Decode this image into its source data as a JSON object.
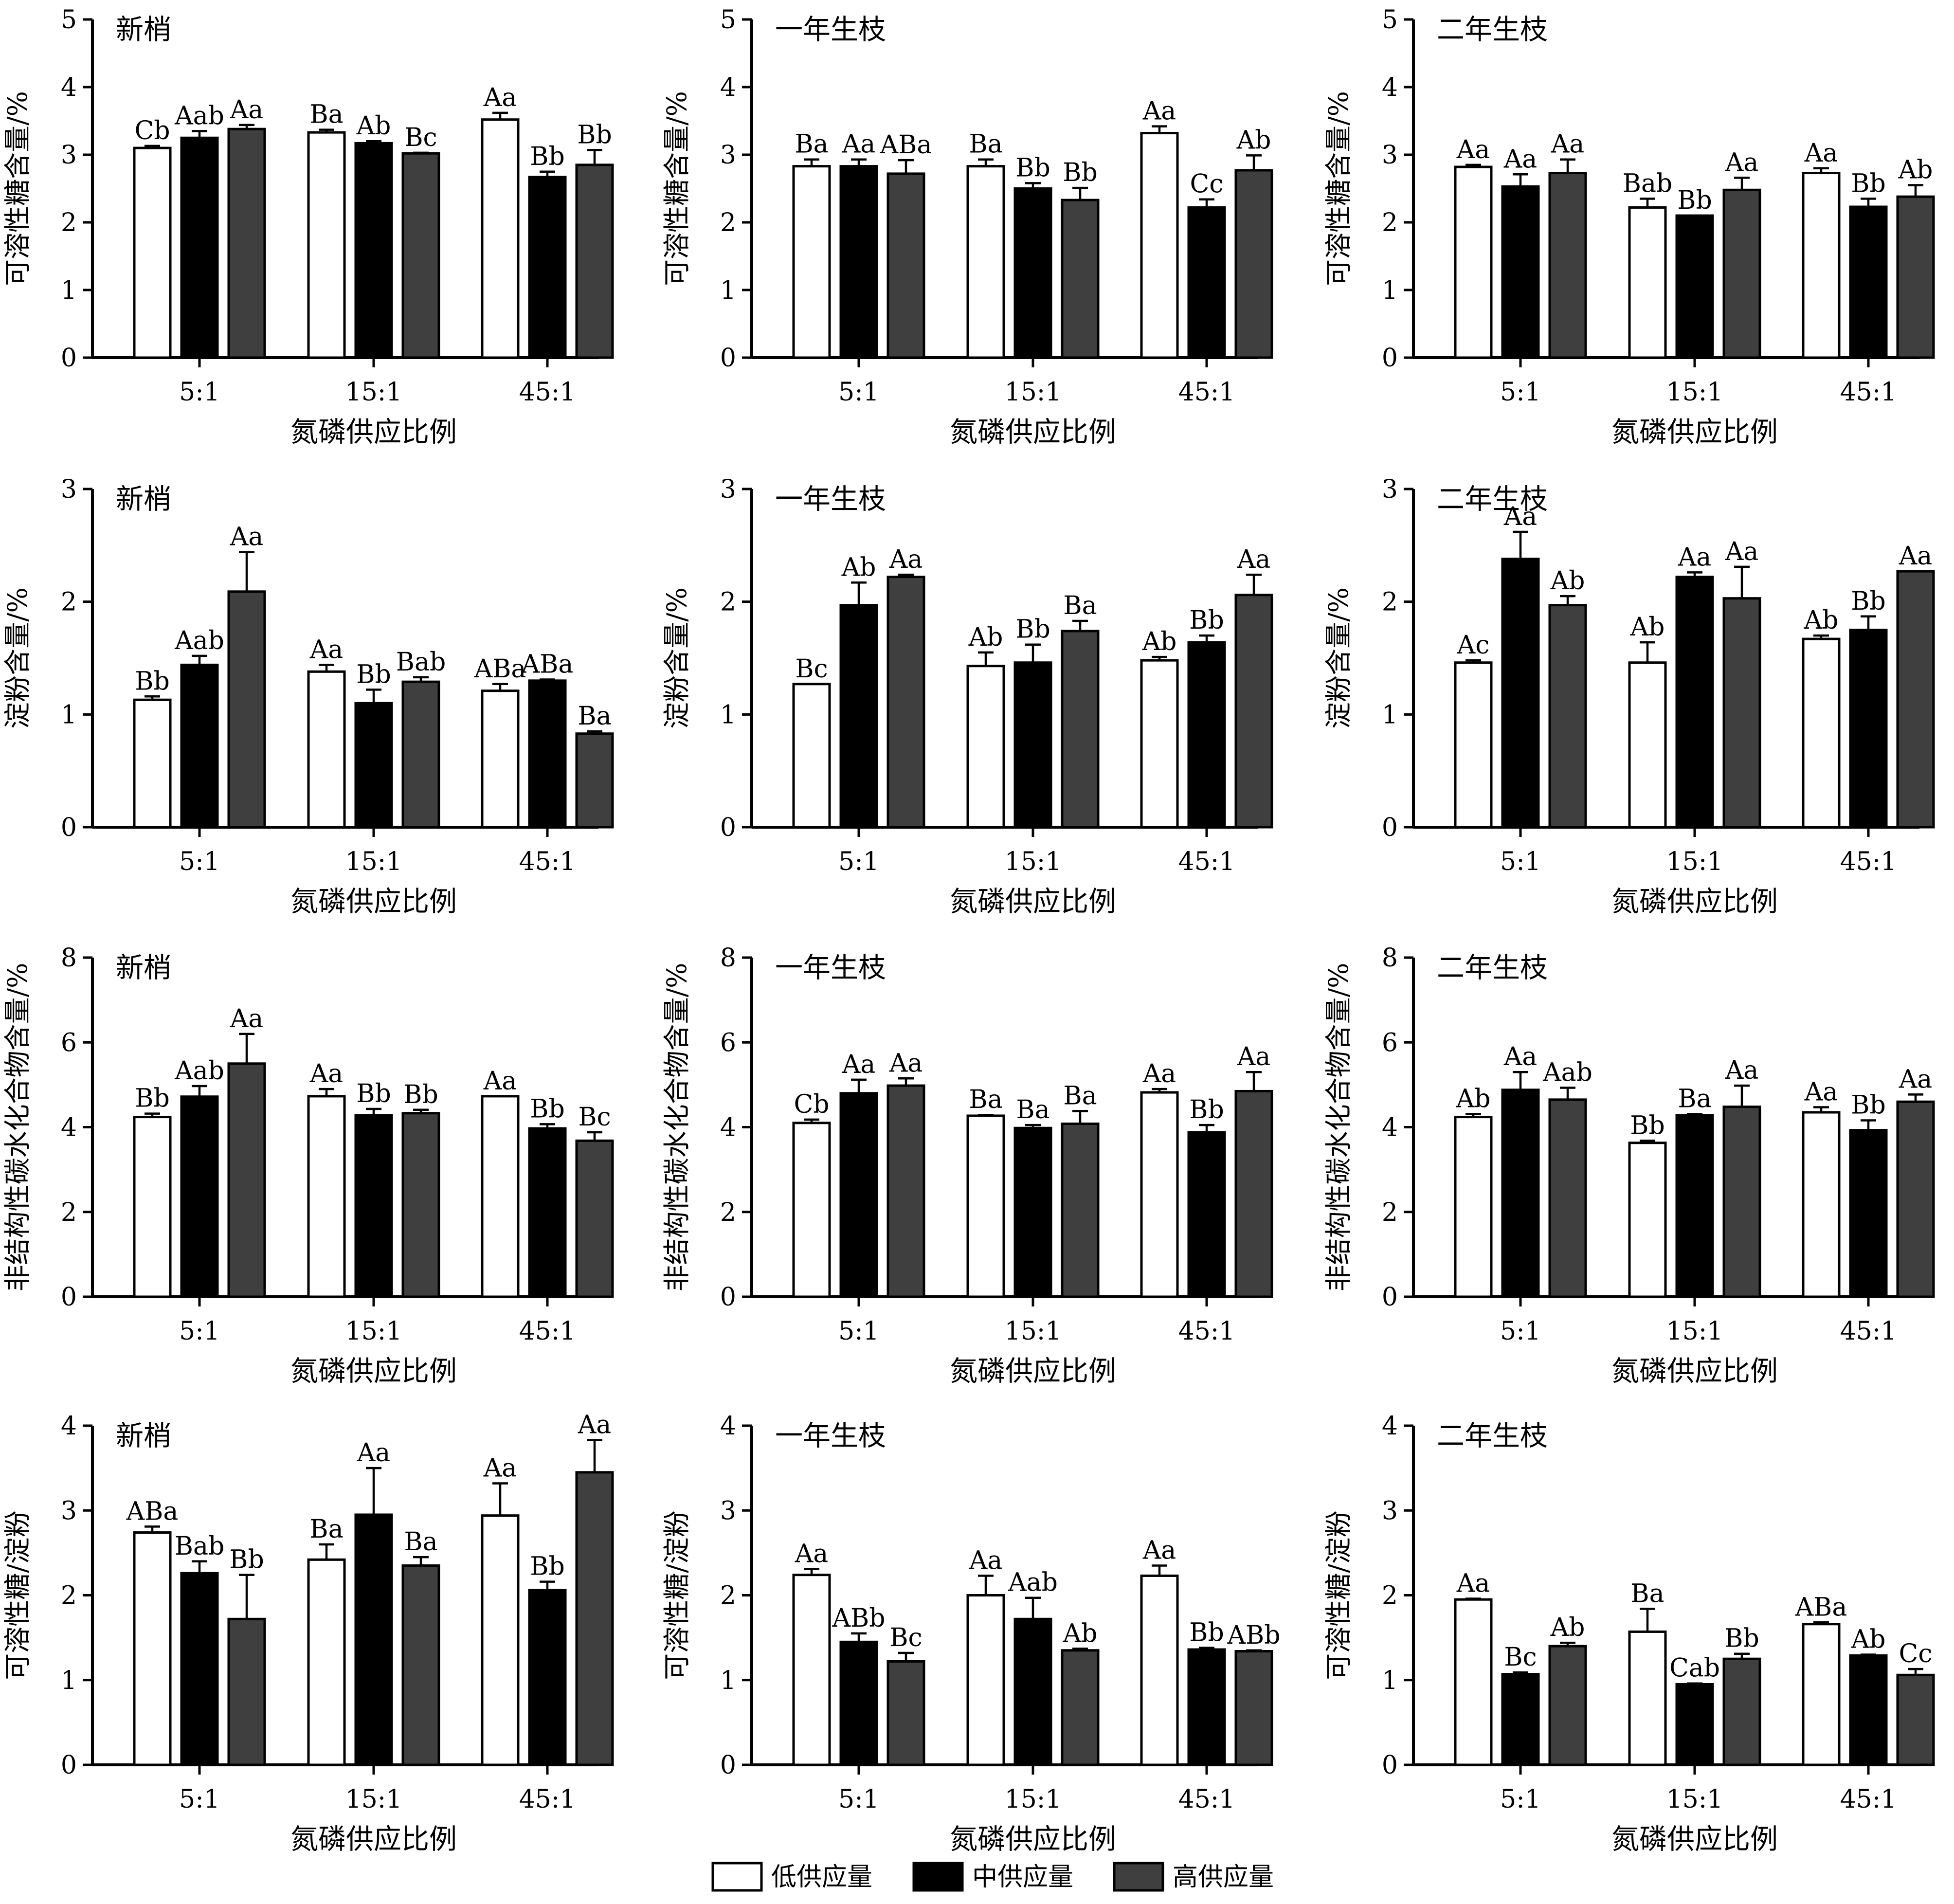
{
  "legend": [
    {
      "label": "低供应量",
      "color": "#ffffff"
    },
    {
      "label": "中供应量",
      "color": "#000000"
    },
    {
      "label": "高供应量",
      "color": "#3f3f3f"
    }
  ],
  "chart_data": [
    {
      "type": "bar",
      "title": "新梢",
      "xlabel": "氮磷供应比例",
      "ylabel": "可溶性糖含量/%",
      "ylim": [
        0,
        5
      ],
      "yticks": [
        0,
        1,
        2,
        3,
        4,
        5
      ],
      "categories": [
        "5:1",
        "15:1",
        "45:1"
      ],
      "series": [
        {
          "name": "低供应量",
          "values": [
            3.1,
            3.33,
            3.52
          ],
          "errors": [
            0.03,
            0.04,
            0.1
          ],
          "labels": [
            "Cb",
            "Ba",
            "Aa"
          ]
        },
        {
          "name": "中供应量",
          "values": [
            3.25,
            3.17,
            2.67
          ],
          "errors": [
            0.1,
            0.03,
            0.08
          ],
          "labels": [
            "Aab",
            "Ab",
            "Bb"
          ]
        },
        {
          "name": "高供应量",
          "values": [
            3.38,
            3.02,
            2.85
          ],
          "errors": [
            0.06,
            0.01,
            0.22
          ],
          "labels": [
            "Aa",
            "Bc",
            "Bb"
          ]
        }
      ]
    },
    {
      "type": "bar",
      "title": "一年生枝",
      "xlabel": "氮磷供应比例",
      "ylabel": "可溶性糖含量/%",
      "ylim": [
        0,
        5
      ],
      "yticks": [
        0,
        1,
        2,
        3,
        4,
        5
      ],
      "categories": [
        "5:1",
        "15:1",
        "45:1"
      ],
      "series": [
        {
          "name": "低供应量",
          "values": [
            2.83,
            2.83,
            3.32
          ],
          "errors": [
            0.1,
            0.1,
            0.1
          ],
          "labels": [
            "Ba",
            "Ba",
            "Aa"
          ]
        },
        {
          "name": "中供应量",
          "values": [
            2.83,
            2.5,
            2.22
          ],
          "errors": [
            0.1,
            0.08,
            0.12
          ],
          "labels": [
            "Aa",
            "Bb",
            "Cc"
          ]
        },
        {
          "name": "高供应量",
          "values": [
            2.72,
            2.33,
            2.77
          ],
          "errors": [
            0.2,
            0.18,
            0.22
          ],
          "labels": [
            "ABa",
            "Bb",
            "Ab"
          ]
        }
      ]
    },
    {
      "type": "bar",
      "title": "二年生枝",
      "xlabel": "氮磷供应比例",
      "ylabel": "可溶性糖含量/%",
      "ylim": [
        0,
        5
      ],
      "yticks": [
        0,
        1,
        2,
        3,
        4,
        5
      ],
      "categories": [
        "5:1",
        "15:1",
        "45:1"
      ],
      "series": [
        {
          "name": "低供应量",
          "values": [
            2.82,
            2.22,
            2.73
          ],
          "errors": [
            0.03,
            0.13,
            0.07
          ],
          "labels": [
            "Aa",
            "Bab",
            "Aa"
          ]
        },
        {
          "name": "中供应量",
          "values": [
            2.53,
            2.1,
            2.23
          ],
          "errors": [
            0.18,
            0.0,
            0.12
          ],
          "labels": [
            "Aa",
            "Bb",
            "Bb"
          ]
        },
        {
          "name": "高供应量",
          "values": [
            2.73,
            2.48,
            2.38
          ],
          "errors": [
            0.2,
            0.18,
            0.17
          ],
          "labels": [
            "Aa",
            "Aa",
            "Ab"
          ]
        }
      ]
    },
    {
      "type": "bar",
      "title": "新梢",
      "xlabel": "氮磷供应比例",
      "ylabel": "淀粉含量/%",
      "ylim": [
        0,
        3
      ],
      "yticks": [
        0,
        1,
        2,
        3
      ],
      "categories": [
        "5:1",
        "15:1",
        "45:1"
      ],
      "series": [
        {
          "name": "低供应量",
          "values": [
            1.13,
            1.38,
            1.21
          ],
          "errors": [
            0.03,
            0.06,
            0.06
          ],
          "labels": [
            "Bb",
            "Aa",
            "ABa"
          ]
        },
        {
          "name": "中供应量",
          "values": [
            1.44,
            1.1,
            1.3
          ],
          "errors": [
            0.08,
            0.12,
            0.01
          ],
          "labels": [
            "Aab",
            "Bb",
            "ABa"
          ]
        },
        {
          "name": "高供应量",
          "values": [
            2.09,
            1.29,
            0.83
          ],
          "errors": [
            0.35,
            0.04,
            0.02
          ],
          "labels": [
            "Aa",
            "Bab",
            "Ba"
          ]
        }
      ]
    },
    {
      "type": "bar",
      "title": "一年生枝",
      "xlabel": "氮磷供应比例",
      "ylabel": "淀粉含量/%",
      "ylim": [
        0,
        3
      ],
      "yticks": [
        0,
        1,
        2,
        3
      ],
      "categories": [
        "5:1",
        "15:1",
        "45:1"
      ],
      "series": [
        {
          "name": "低供应量",
          "values": [
            1.27,
            1.43,
            1.48
          ],
          "errors": [
            0.0,
            0.12,
            0.03
          ],
          "labels": [
            "Bc",
            "Ab",
            "Ab"
          ]
        },
        {
          "name": "中供应量",
          "values": [
            1.97,
            1.46,
            1.64
          ],
          "errors": [
            0.2,
            0.16,
            0.06
          ],
          "labels": [
            "Ab",
            "Bb",
            "Bb"
          ]
        },
        {
          "name": "高供应量",
          "values": [
            2.22,
            1.74,
            2.06
          ],
          "errors": [
            0.02,
            0.09,
            0.18
          ],
          "labels": [
            "Aa",
            "Ba",
            "Aa"
          ]
        }
      ]
    },
    {
      "type": "bar",
      "title": "二年生枝",
      "xlabel": "氮磷供应比例",
      "ylabel": "淀粉含量/%",
      "ylim": [
        0,
        3
      ],
      "yticks": [
        0,
        1,
        2,
        3
      ],
      "categories": [
        "5:1",
        "15:1",
        "45:1"
      ],
      "series": [
        {
          "name": "低供应量",
          "values": [
            1.46,
            1.46,
            1.67
          ],
          "errors": [
            0.02,
            0.18,
            0.03
          ],
          "labels": [
            "Ac",
            "Ab",
            "Ab"
          ]
        },
        {
          "name": "中供应量",
          "values": [
            2.38,
            2.22,
            1.75
          ],
          "errors": [
            0.24,
            0.04,
            0.12
          ],
          "labels": [
            "Aa",
            "Aa",
            "Bb"
          ]
        },
        {
          "name": "高供应量",
          "values": [
            1.97,
            2.03,
            2.27
          ],
          "errors": [
            0.08,
            0.28,
            0.0
          ],
          "labels": [
            "Ab",
            "Aa",
            "Aa"
          ]
        }
      ]
    },
    {
      "type": "bar",
      "title": "新梢",
      "xlabel": "氮磷供应比例",
      "ylabel": "非结构性碳水化合物含量/%",
      "ylim": [
        0,
        8
      ],
      "yticks": [
        0,
        2,
        4,
        6,
        8
      ],
      "categories": [
        "5:1",
        "15:1",
        "45:1"
      ],
      "series": [
        {
          "name": "低供应量",
          "values": [
            4.24,
            4.73,
            4.73
          ],
          "errors": [
            0.08,
            0.17,
            0.0
          ],
          "labels": [
            "Bb",
            "Aa",
            "Aa"
          ]
        },
        {
          "name": "中供应量",
          "values": [
            4.72,
            4.28,
            3.97
          ],
          "errors": [
            0.25,
            0.15,
            0.1
          ],
          "labels": [
            "Aab",
            "Bb",
            "Bb"
          ]
        },
        {
          "name": "高供应量",
          "values": [
            5.5,
            4.33,
            3.68
          ],
          "errors": [
            0.7,
            0.08,
            0.2
          ],
          "labels": [
            "Aa",
            "Bb",
            "Bc"
          ]
        }
      ]
    },
    {
      "type": "bar",
      "title": "一年生枝",
      "xlabel": "氮磷供应比例",
      "ylabel": "非结构性碳水化合物含量/%",
      "ylim": [
        0,
        8
      ],
      "yticks": [
        0,
        2,
        4,
        6,
        8
      ],
      "categories": [
        "5:1",
        "15:1",
        "45:1"
      ],
      "series": [
        {
          "name": "低供应量",
          "values": [
            4.1,
            4.27,
            4.82
          ],
          "errors": [
            0.08,
            0.02,
            0.08
          ],
          "labels": [
            "Cb",
            "Ba",
            "Aa"
          ]
        },
        {
          "name": "中供应量",
          "values": [
            4.8,
            3.98,
            3.88
          ],
          "errors": [
            0.32,
            0.07,
            0.17
          ],
          "labels": [
            "Aa",
            "Ba",
            "Bb"
          ]
        },
        {
          "name": "高供应量",
          "values": [
            4.98,
            4.08,
            4.85
          ],
          "errors": [
            0.17,
            0.3,
            0.45
          ],
          "labels": [
            "Aa",
            "Ba",
            "Aa"
          ]
        }
      ]
    },
    {
      "type": "bar",
      "title": "二年生枝",
      "xlabel": "氮磷供应比例",
      "ylabel": "非结构性碳水化合物含量/%",
      "ylim": [
        0,
        8
      ],
      "yticks": [
        0,
        2,
        4,
        6,
        8
      ],
      "categories": [
        "5:1",
        "15:1",
        "45:1"
      ],
      "series": [
        {
          "name": "低供应量",
          "values": [
            4.24,
            3.63,
            4.35
          ],
          "errors": [
            0.07,
            0.05,
            0.12
          ],
          "labels": [
            "Ab",
            "Bb",
            "Aa"
          ]
        },
        {
          "name": "中供应量",
          "values": [
            4.88,
            4.28,
            3.93
          ],
          "errors": [
            0.42,
            0.03,
            0.23
          ],
          "labels": [
            "Aa",
            "Ba",
            "Bb"
          ]
        },
        {
          "name": "高供应量",
          "values": [
            4.65,
            4.48,
            4.6
          ],
          "errors": [
            0.28,
            0.5,
            0.17
          ],
          "labels": [
            "Aab",
            "Aa",
            "Aa"
          ]
        }
      ]
    },
    {
      "type": "bar",
      "title": "新梢",
      "xlabel": "氮磷供应比例",
      "ylabel": "可溶性糖/淀粉",
      "ylim": [
        0,
        4
      ],
      "yticks": [
        0,
        1,
        2,
        3,
        4
      ],
      "categories": [
        "5:1",
        "15:1",
        "45:1"
      ],
      "series": [
        {
          "name": "低供应量",
          "values": [
            2.74,
            2.42,
            2.94
          ],
          "errors": [
            0.07,
            0.18,
            0.38
          ],
          "labels": [
            "ABa",
            "Ba",
            "Aa"
          ]
        },
        {
          "name": "中供应量",
          "values": [
            2.26,
            2.95,
            2.06
          ],
          "errors": [
            0.14,
            0.55,
            0.1
          ],
          "labels": [
            "Bab",
            "Aa",
            "Bb"
          ]
        },
        {
          "name": "高供应量",
          "values": [
            1.72,
            2.35,
            3.45
          ],
          "errors": [
            0.52,
            0.1,
            0.38
          ],
          "labels": [
            "Bb",
            "Ba",
            "Aa"
          ]
        }
      ]
    },
    {
      "type": "bar",
      "title": "一年生枝",
      "xlabel": "氮磷供应比例",
      "ylabel": "可溶性糖/淀粉",
      "ylim": [
        0,
        4
      ],
      "yticks": [
        0,
        1,
        2,
        3,
        4
      ],
      "categories": [
        "5:1",
        "15:1",
        "45:1"
      ],
      "series": [
        {
          "name": "低供应量",
          "values": [
            2.24,
            2.0,
            2.23
          ],
          "errors": [
            0.07,
            0.23,
            0.12
          ],
          "labels": [
            "Aa",
            "Aa",
            "Aa"
          ]
        },
        {
          "name": "中供应量",
          "values": [
            1.45,
            1.72,
            1.36
          ],
          "errors": [
            0.1,
            0.25,
            0.02
          ],
          "labels": [
            "ABb",
            "Aab",
            "Bb"
          ]
        },
        {
          "name": "高供应量",
          "values": [
            1.22,
            1.35,
            1.34
          ],
          "errors": [
            0.1,
            0.02,
            0.01
          ],
          "labels": [
            "Bc",
            "Ab",
            "ABb"
          ]
        }
      ]
    },
    {
      "type": "bar",
      "title": "二年生枝",
      "xlabel": "氮磷供应比例",
      "ylabel": "可溶性糖/淀粉",
      "ylim": [
        0,
        4
      ],
      "yticks": [
        0,
        1,
        2,
        3,
        4
      ],
      "categories": [
        "5:1",
        "15:1",
        "45:1"
      ],
      "series": [
        {
          "name": "低供应量",
          "values": [
            1.95,
            1.57,
            1.66
          ],
          "errors": [
            0.01,
            0.27,
            0.02
          ],
          "labels": [
            "Aa",
            "Ba",
            "ABa"
          ]
        },
        {
          "name": "中供应量",
          "values": [
            1.07,
            0.95,
            1.29
          ],
          "errors": [
            0.02,
            0.01,
            0.01
          ],
          "labels": [
            "Bc",
            "Cab",
            "Ab"
          ]
        },
        {
          "name": "高供应量",
          "values": [
            1.4,
            1.25,
            1.06
          ],
          "errors": [
            0.04,
            0.06,
            0.07
          ],
          "labels": [
            "Ab",
            "Bb",
            "Cc"
          ]
        }
      ]
    }
  ]
}
